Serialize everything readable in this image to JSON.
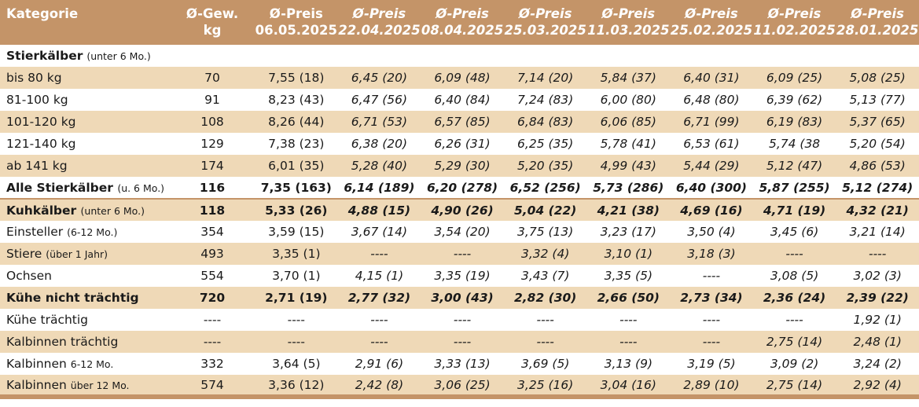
{
  "header": {
    "category": "Kategorie",
    "weight_line1": "Ø-Gew.",
    "weight_line2": "kg",
    "price_label": "Ø-Preis",
    "dates": [
      "06.05.2025",
      "22.04.2025",
      "08.04.2025",
      "25.03.2025",
      "11.03.2025",
      "25.02.2025",
      "11.02.2025",
      "28.01.2025"
    ]
  },
  "rows": [
    {
      "name": "Stierkälber",
      "note": "(unter 6 Mo.)",
      "weight": "",
      "prices": [
        "",
        "",
        "",
        "",
        "",
        "",
        "",
        ""
      ]
    },
    {
      "name": "bis 80 kg",
      "note": "",
      "weight": "70",
      "prices": [
        "7,55 (18)",
        "6,45 (20)",
        "6,09 (48)",
        "7,14 (20)",
        "5,84 (37)",
        "6,40 (31)",
        "6,09 (25)",
        "5,08 (25)"
      ]
    },
    {
      "name": "81-100 kg",
      "note": "",
      "weight": "91",
      "prices": [
        "8,23 (43)",
        "6,47 (56)",
        "6,40 (84)",
        "7,24 (83)",
        "6,00 (80)",
        "6,48 (80)",
        "6,39 (62)",
        "5,13 (77)"
      ]
    },
    {
      "name": "101-120 kg",
      "note": "",
      "weight": "108",
      "prices": [
        "8,26 (44)",
        "6,71 (53)",
        "6,57 (85)",
        "6,84 (83)",
        "6,06 (85)",
        "6,71 (99)",
        "6,19 (83)",
        "5,37 (65)"
      ]
    },
    {
      "name": "121-140 kg",
      "note": "",
      "weight": "129",
      "prices": [
        "7,38 (23)",
        "6,38 (20)",
        "6,26 (31)",
        "6,25 (35)",
        "5,78 (41)",
        "6,53 (61)",
        "5,74 (38",
        "5,20 (54)"
      ]
    },
    {
      "name": "ab 141 kg",
      "note": "",
      "weight": "174",
      "prices": [
        "6,01 (35)",
        "5,28 (40)",
        "5,29 (30)",
        "5,20 (35)",
        "4,99 (43)",
        "5,44 (29)",
        "5,12 (47)",
        "4,86 (53)"
      ]
    },
    {
      "name": "Alle Stierkälber",
      "note": "(u. 6 Mo.)",
      "weight": "116",
      "prices": [
        "7,35 (163)",
        "6,14 (189)",
        "6,20 (278)",
        "6,52 (256)",
        "5,73 (286)",
        "6,40 (300)",
        "5,87 (255)",
        "5,12 (274)"
      ]
    },
    {
      "name": "Kuhkälber",
      "note": "(unter 6 Mo.)",
      "weight": "118",
      "prices": [
        "5,33 (26)",
        "4,88 (15)",
        "4,90 (26)",
        "5,04 (22)",
        "4,21 (38)",
        "4,69 (16)",
        "4,71 (19)",
        "4,32 (21)"
      ]
    },
    {
      "name": "Einsteller",
      "note": "(6-12 Mo.)",
      "weight": "354",
      "prices": [
        "3,59 (15)",
        "3,67 (14)",
        "3,54 (20)",
        "3,75 (13)",
        "3,23 (17)",
        "3,50 (4)",
        "3,45 (6)",
        "3,21 (14)"
      ]
    },
    {
      "name": "Stiere",
      "note": "(über 1 Jahr)",
      "weight": "493",
      "prices": [
        "3,35 (1)",
        "----",
        "----",
        "3,32 (4)",
        "3,10 (1)",
        "3,18 (3)",
        "----",
        "----"
      ]
    },
    {
      "name": "Ochsen",
      "note": "",
      "weight": "554",
      "prices": [
        "3,70 (1)",
        "4,15 (1)",
        "3,35 (19)",
        "3,43 (7)",
        "3,35 (5)",
        "----",
        "3,08 (5)",
        "3,02 (3)"
      ]
    },
    {
      "name": "Kühe nicht trächtig",
      "note": "",
      "weight": "720",
      "prices": [
        "2,71 (19)",
        "2,77 (32)",
        "3,00 (43)",
        "2,82 (30)",
        "2,66 (50)",
        "2,73 (34)",
        "2,36 (24)",
        "2,39 (22)"
      ]
    },
    {
      "name": "Kühe trächtig",
      "note": "",
      "weight": "----",
      "prices": [
        "----",
        "----",
        "----",
        "----",
        "----",
        "----",
        "----",
        "1,92 (1)"
      ]
    },
    {
      "name": "Kalbinnen trächtig",
      "note": "",
      "weight": "----",
      "prices": [
        "----",
        "----",
        "----",
        "----",
        "----",
        "----",
        "2,75 (14)",
        "2,48 (1)"
      ]
    },
    {
      "name": "Kalbinnen",
      "note": "6-12 Mo.",
      "weight": "332",
      "prices": [
        "3,64 (5)",
        "2,91 (6)",
        "3,33 (13)",
        "3,69 (5)",
        "3,13 (9)",
        "3,19 (5)",
        "3,09 (2)",
        "3,24 (2)"
      ]
    },
    {
      "name": "Kalbinnen",
      "note": "über 12 Mo.",
      "weight": "574",
      "prices": [
        "3,36 (12)",
        "2,42 (8)",
        "3,06 (25)",
        "3,25 (16)",
        "3,04 (16)",
        "2,89 (10)",
        "2,75 (14)",
        "2,92 (4)"
      ]
    }
  ]
}
